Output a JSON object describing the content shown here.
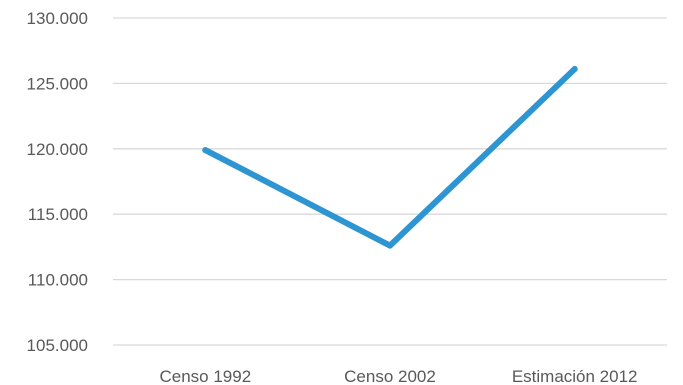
{
  "chart_data": {
    "type": "line",
    "title": "",
    "xlabel": "",
    "ylabel": "",
    "categories": [
      "Censo 1992",
      "Censo 2002",
      "Estimación 2012"
    ],
    "series": [
      {
        "values": [
          119900,
          112600,
          126100
        ],
        "color": "#2e95d3"
      }
    ],
    "ylim": [
      105000,
      130000
    ],
    "yticks": [
      105000,
      110000,
      115000,
      120000,
      125000,
      130000
    ],
    "ytick_labels": [
      "105.000",
      "110.000",
      "115.000",
      "120.000",
      "125.000",
      "130.000"
    ],
    "grid": true,
    "legend": "none",
    "gridline_color": "#d9d9d9",
    "text_color": "#595959"
  }
}
